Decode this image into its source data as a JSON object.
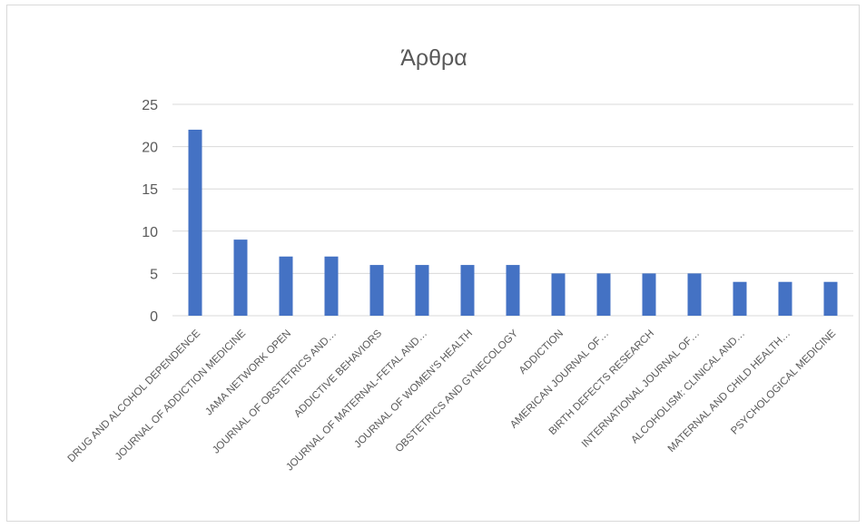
{
  "chart_data": {
    "type": "bar",
    "title": "Άρθρα",
    "categories": [
      "DRUG AND ALCOHOL DEPENDENCE",
      "JOURNAL OF ADDICTION MEDICINE",
      "JAMA NETWORK OPEN",
      "JOURNAL OF OBSTETRICS AND…",
      "ADDICTIVE BEHAVIORS",
      "JOURNAL OF MATERNAL-FETAL AND…",
      "JOURNAL OF WOMEN'S HEALTH",
      "OBSTETRICS AND GYNECOLOGY",
      "ADDICTION",
      "AMERICAN JOURNAL OF…",
      "BIRTH DEFECTS RESEARCH",
      "INTERNATIONAL JOURNAL OF…",
      "ALCOHOLISM: CLINICAL AND…",
      "MATERNAL AND CHILD HEALTH…",
      "PSYCHOLOGICAL MEDICINE"
    ],
    "values": [
      22,
      9,
      7,
      7,
      6,
      6,
      6,
      6,
      5,
      5,
      5,
      5,
      4,
      4,
      4
    ],
    "ylim": [
      0,
      25
    ],
    "yticks": [
      0,
      5,
      10,
      15,
      20,
      25
    ],
    "grid": true,
    "legend": "none",
    "bar_color": "#4472c4"
  }
}
